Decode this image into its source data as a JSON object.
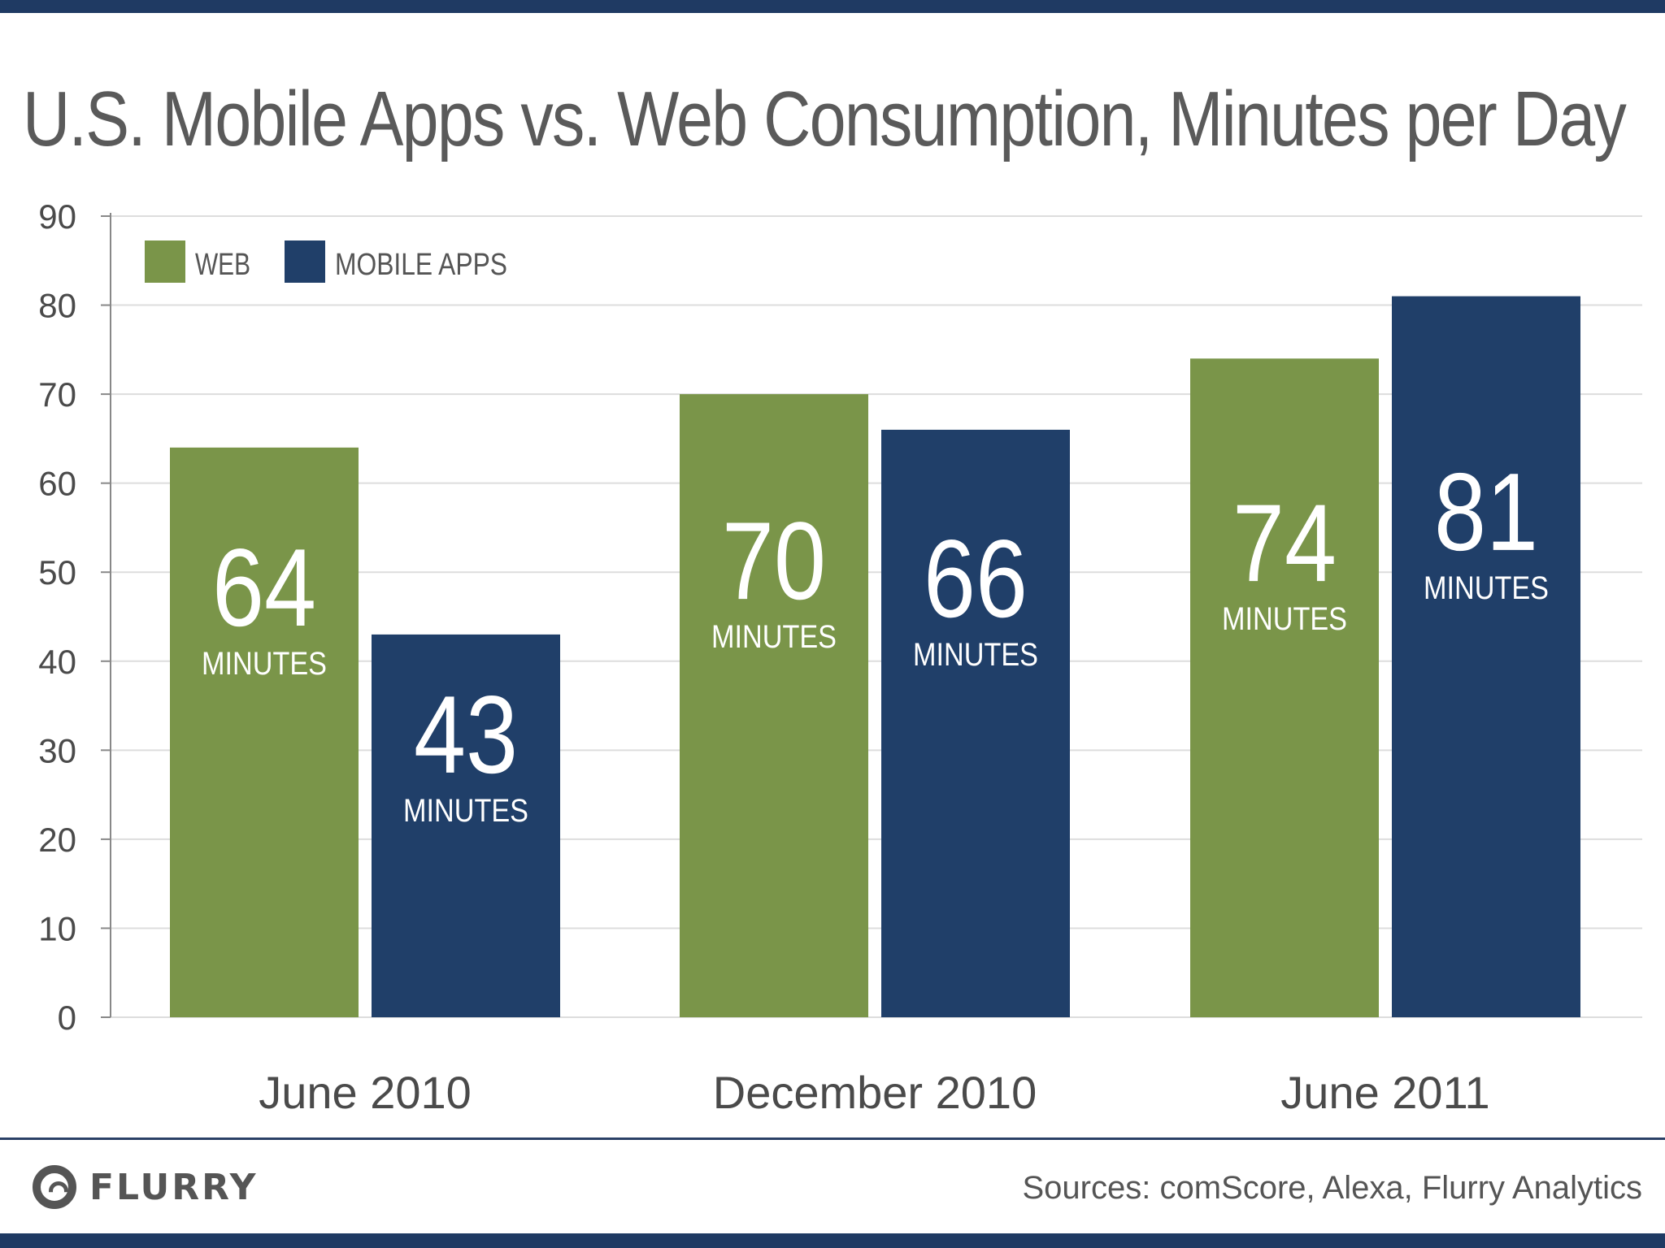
{
  "colors": {
    "web": "#7a9549",
    "apps": "#203f69",
    "grid": "#dddddd"
  },
  "chart_data": {
    "type": "bar",
    "title": "U.S. Mobile Apps vs. Web Consumption, Minutes per Day",
    "categories": [
      "June 2010",
      "December 2010",
      "June 2011"
    ],
    "series": [
      {
        "name": "WEB",
        "values": [
          64,
          70,
          74
        ]
      },
      {
        "name": "MOBILE APPS",
        "values": [
          43,
          66,
          81
        ]
      }
    ],
    "value_unit_label": "MINUTES",
    "ylim": [
      0,
      90
    ],
    "yticks": [
      0,
      10,
      20,
      30,
      40,
      50,
      60,
      70,
      80,
      90
    ],
    "grid": true,
    "legend": "top-left",
    "xlabel": "",
    "ylabel": ""
  },
  "footer": {
    "brand": "FLURRY",
    "sources": "Sources: comScore, Alexa, Flurry Analytics"
  }
}
